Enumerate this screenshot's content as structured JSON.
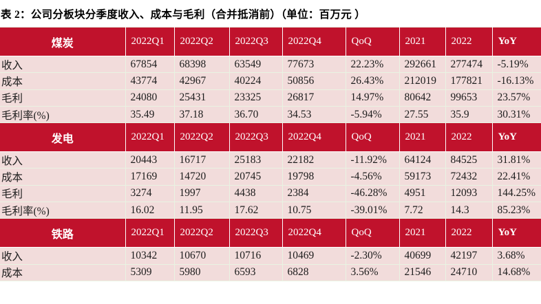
{
  "title": "表 2：公司分板块分季度收入、成本与毛利（合并抵消前）（单位：百万元 ）",
  "columns": [
    "2022Q1",
    "2022Q2",
    "2022Q3",
    "2022Q4",
    "QoQ",
    "2021",
    "2022",
    "YoY"
  ],
  "sections": [
    {
      "name": "煤炭",
      "rows": [
        {
          "label": "收入",
          "values": [
            "67854",
            "68398",
            "63549",
            "77673",
            "22.23%",
            "292661",
            "277474",
            "-5.19%"
          ]
        },
        {
          "label": "成本",
          "values": [
            "43774",
            "42967",
            "40224",
            "50856",
            "26.43%",
            "212019",
            "177821",
            "-16.13%"
          ]
        },
        {
          "label": "毛利",
          "values": [
            "24080",
            "25431",
            "23325",
            "26817",
            "14.97%",
            "80642",
            "99653",
            "23.57%"
          ]
        },
        {
          "label": "毛利率(%)",
          "values": [
            "35.49",
            "37.18",
            "36.70",
            "34.53",
            "-5.94%",
            "27.55",
            "35.9",
            "30.31%"
          ]
        }
      ]
    },
    {
      "name": "发电",
      "rows": [
        {
          "label": "收入",
          "values": [
            "20443",
            "16717",
            "25183",
            "22182",
            "-11.92%",
            "64124",
            "84525",
            "31.81%"
          ]
        },
        {
          "label": "成本",
          "values": [
            "17169",
            "14720",
            "20745",
            "19798",
            "-4.56%",
            "59173",
            "72432",
            "22.41%"
          ]
        },
        {
          "label": "毛利",
          "values": [
            "3274",
            "1997",
            "4438",
            "2384",
            "-46.28%",
            "4951",
            "12093",
            "144.25%"
          ]
        },
        {
          "label": "毛利率(%)",
          "values": [
            "16.02",
            "11.95",
            "17.62",
            "10.75",
            "-39.01%",
            "7.72",
            "14.3",
            "85.23%"
          ]
        }
      ]
    },
    {
      "name": "铁路",
      "rows": [
        {
          "label": "收入",
          "values": [
            "10342",
            "10670",
            "10716",
            "10469",
            "-2.30%",
            "40699",
            "42197",
            "3.68%"
          ]
        },
        {
          "label": "成本",
          "values": [
            "5309",
            "5980",
            "6593",
            "6828",
            "3.56%",
            "21546",
            "24710",
            "14.68%"
          ]
        }
      ]
    }
  ],
  "colors": {
    "header_bg": "#c0122c",
    "header_text": "#ffffff",
    "row_bg": "#f2dcdb",
    "grid_line": "#e9f3e2",
    "body_text": "#1c1c1c"
  }
}
